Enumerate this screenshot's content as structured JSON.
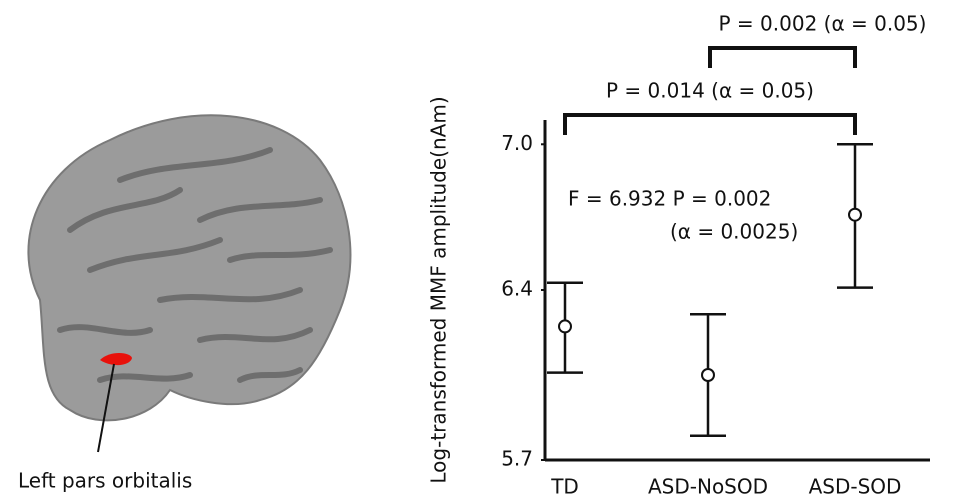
{
  "brain_label": "Left pars orbitalis",
  "chart_data": {
    "type": "errorbar",
    "ylabel": "Log-transformed MMF amplitude(nAm)",
    "categories": [
      "TD",
      "ASD-NoSOD",
      "ASD-SOD"
    ],
    "values": [
      6.25,
      6.05,
      6.71
    ],
    "lower": [
      6.06,
      5.8,
      6.41
    ],
    "upper": [
      6.43,
      6.3,
      7.0
    ],
    "ylim": [
      5.7,
      7.1
    ],
    "yticks": [
      5.7,
      6.4,
      {
        "value": 7.0,
        "label": "7.0"
      }
    ],
    "annotations": [
      "F = 6.932 P = 0.002",
      "(α = 0.0025)"
    ],
    "brackets": [
      "P = 0.014 (α = 0.05)",
      "P = 0.002 (α = 0.05)"
    ]
  }
}
